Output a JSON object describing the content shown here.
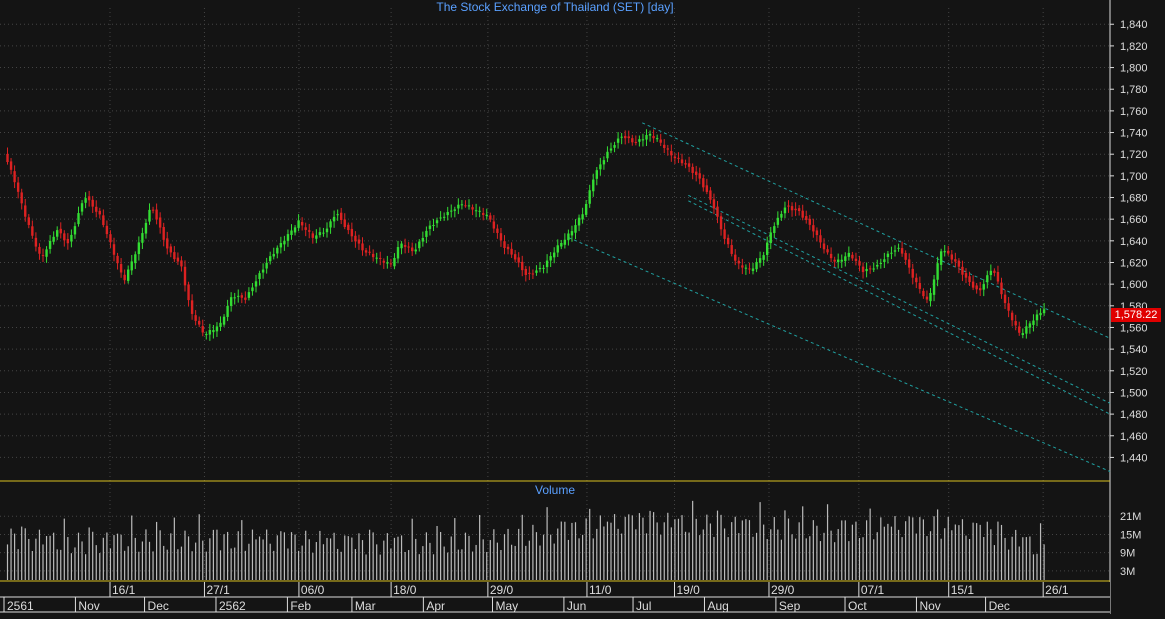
{
  "chart_title": "The Stock Exchange of Thailand (SET) [day]",
  "volume_title": "Volume",
  "last_price_label": "1,578.22",
  "colors": {
    "background": "#141414",
    "grid": "#444444",
    "up": "#33dd33",
    "down": "#dd2222",
    "trend": "#20a0a0",
    "axis_text": "#dddddd",
    "title": "#5aa0ff",
    "last_price_bg": "#e00000",
    "separator": "#d8c020",
    "volume_bar": "#bbbbbb"
  },
  "chart_data": [
    {
      "type": "candlestick",
      "title": "The Stock Exchange of Thailand (SET) [day]",
      "y_ticks": [
        "1,840",
        "1,820",
        "1,800",
        "1,780",
        "1,760",
        "1,740",
        "1,720",
        "1,700",
        "1,680",
        "1,660",
        "1,640",
        "1,620",
        "1,600",
        "1,580",
        "1,560",
        "1,540",
        "1,520",
        "1,500",
        "1,480",
        "1,460",
        "1,440"
      ],
      "ylim": [
        1421,
        1855
      ],
      "last_close": 1578.22,
      "close_series": [
        {
          "date": "2561-10-01",
          "close": 1720
        },
        {
          "date": "2561-10-05",
          "close": 1700
        },
        {
          "date": "2561-10-11",
          "close": 1660
        },
        {
          "date": "2561-10-17",
          "close": 1625
        },
        {
          "date": "2561-10-24",
          "close": 1650
        },
        {
          "date": "2561-10-29",
          "close": 1635
        },
        {
          "date": "2561-11-05",
          "close": 1680
        },
        {
          "date": "2561-11-12",
          "close": 1662
        },
        {
          "date": "2561-11-16",
          "close": 1640
        },
        {
          "date": "2561-11-22",
          "close": 1605
        },
        {
          "date": "2561-11-28",
          "close": 1635
        },
        {
          "date": "2561-12-04",
          "close": 1672
        },
        {
          "date": "2561-12-11",
          "close": 1630
        },
        {
          "date": "2561-12-17",
          "close": 1615
        },
        {
          "date": "2561-12-21",
          "close": 1575
        },
        {
          "date": "2561-12-27",
          "close": 1555
        },
        {
          "date": "2562-01-03",
          "close": 1565
        },
        {
          "date": "2562-01-08",
          "close": 1590
        },
        {
          "date": "2562-01-14",
          "close": 1585
        },
        {
          "date": "2562-01-18",
          "close": 1600
        },
        {
          "date": "2562-01-24",
          "close": 1622
        },
        {
          "date": "2562-01-30",
          "close": 1640
        },
        {
          "date": "2562-02-06",
          "close": 1660
        },
        {
          "date": "2562-02-12",
          "close": 1645
        },
        {
          "date": "2562-02-18",
          "close": 1650
        },
        {
          "date": "2562-02-22",
          "close": 1665
        },
        {
          "date": "2562-02-28",
          "close": 1645
        },
        {
          "date": "2562-03-06",
          "close": 1630
        },
        {
          "date": "2562-03-12",
          "close": 1625
        },
        {
          "date": "2562-03-18",
          "close": 1620
        },
        {
          "date": "2562-03-22",
          "close": 1640
        },
        {
          "date": "2562-03-28",
          "close": 1630
        },
        {
          "date": "2562-04-03",
          "close": 1650
        },
        {
          "date": "2562-04-09",
          "close": 1660
        },
        {
          "date": "2562-04-18",
          "close": 1675
        },
        {
          "date": "2562-04-24",
          "close": 1670
        },
        {
          "date": "2562-04-29",
          "close": 1665
        },
        {
          "date": "2562-05-06",
          "close": 1635
        },
        {
          "date": "2562-05-10",
          "close": 1625
        },
        {
          "date": "2562-05-16",
          "close": 1605
        },
        {
          "date": "2562-05-23",
          "close": 1615
        },
        {
          "date": "2562-05-29",
          "close": 1635
        },
        {
          "date": "2562-06-04",
          "close": 1650
        },
        {
          "date": "2562-06-10",
          "close": 1670
        },
        {
          "date": "2562-06-14",
          "close": 1700
        },
        {
          "date": "2562-06-20",
          "close": 1720
        },
        {
          "date": "2562-06-26",
          "close": 1735
        },
        {
          "date": "2562-07-02",
          "close": 1730
        },
        {
          "date": "2562-07-08",
          "close": 1740
        },
        {
          "date": "2562-07-12",
          "close": 1735
        },
        {
          "date": "2562-07-18",
          "close": 1720
        },
        {
          "date": "2562-07-24",
          "close": 1710
        },
        {
          "date": "2562-07-30",
          "close": 1695
        },
        {
          "date": "2562-08-05",
          "close": 1670
        },
        {
          "date": "2562-08-09",
          "close": 1645
        },
        {
          "date": "2562-08-15",
          "close": 1620
        },
        {
          "date": "2562-08-21",
          "close": 1615
        },
        {
          "date": "2562-08-27",
          "close": 1630
        },
        {
          "date": "2562-08-30",
          "close": 1650
        },
        {
          "date": "2562-09-05",
          "close": 1670
        },
        {
          "date": "2562-09-11",
          "close": 1665
        },
        {
          "date": "2562-09-17",
          "close": 1650
        },
        {
          "date": "2562-09-23",
          "close": 1630
        },
        {
          "date": "2562-09-27",
          "close": 1622
        },
        {
          "date": "2562-10-03",
          "close": 1630
        },
        {
          "date": "2562-10-09",
          "close": 1612
        },
        {
          "date": "2562-10-15",
          "close": 1615
        },
        {
          "date": "2562-10-21",
          "close": 1628
        },
        {
          "date": "2562-10-25",
          "close": 1632
        },
        {
          "date": "2562-10-31",
          "close": 1605
        },
        {
          "date": "2562-11-06",
          "close": 1585
        },
        {
          "date": "2562-11-12",
          "close": 1635
        },
        {
          "date": "2562-11-18",
          "close": 1620
        },
        {
          "date": "2562-11-22",
          "close": 1605
        },
        {
          "date": "2562-11-28",
          "close": 1590
        },
        {
          "date": "2562-12-04",
          "close": 1615
        },
        {
          "date": "2562-12-10",
          "close": 1580
        },
        {
          "date": "2562-12-16",
          "close": 1555
        },
        {
          "date": "2562-12-20",
          "close": 1565
        },
        {
          "date": "2562-12-24",
          "close": 1573
        },
        {
          "date": "2562-12-27",
          "close": 1578.22
        }
      ],
      "trend_channel": [
        {
          "start": {
            "date": "2562-07-05",
            "value": 1749
          },
          "end": {
            "date": "2563-01-24",
            "value": 1550
          }
        },
        {
          "start": {
            "date": "2562-07-25",
            "value": 1682
          },
          "end": {
            "date": "2563-01-24",
            "value": 1490
          }
        },
        {
          "start": {
            "date": "2562-07-25",
            "value": 1677
          },
          "end": {
            "date": "2563-01-24",
            "value": 1480
          }
        },
        {
          "start": {
            "date": "2562-06-03",
            "value": 1643
          },
          "end": {
            "date": "2563-01-24",
            "value": 1427
          }
        }
      ]
    },
    {
      "type": "bar",
      "title": "Volume",
      "y_ticks": [
        "21M",
        "15M",
        "9M",
        "3M"
      ],
      "ylim": [
        0,
        27
      ],
      "volume_series": [
        {
          "date": "2561-10-01",
          "value": 14
        },
        {
          "date": "2561-11-01",
          "value": 12
        },
        {
          "date": "2561-12-01",
          "value": 13
        },
        {
          "date": "2562-01-01",
          "value": 13
        },
        {
          "date": "2562-02-01",
          "value": 13
        },
        {
          "date": "2562-03-01",
          "value": 12
        },
        {
          "date": "2562-04-01",
          "value": 12
        },
        {
          "date": "2562-05-01",
          "value": 13
        },
        {
          "date": "2562-06-01",
          "value": 16
        },
        {
          "date": "2562-07-01",
          "value": 19
        },
        {
          "date": "2562-08-01",
          "value": 18
        },
        {
          "date": "2562-09-01",
          "value": 17
        },
        {
          "date": "2562-10-01",
          "value": 16
        },
        {
          "date": "2562-11-01",
          "value": 18
        },
        {
          "date": "2562-12-01",
          "value": 16
        },
        {
          "date": "2562-12-27",
          "value": 10
        }
      ]
    }
  ],
  "x_axis": {
    "top_labels": [
      {
        "label": "16/1",
        "date": "2561-11-16"
      },
      {
        "label": "27/1",
        "date": "2561-12-27"
      },
      {
        "label": "06/0",
        "date": "2562-02-06"
      },
      {
        "label": "18/0",
        "date": "2562-03-18"
      },
      {
        "label": "29/0",
        "date": "2562-04-29"
      },
      {
        "label": "11/0",
        "date": "2562-06-11"
      },
      {
        "label": "19/0",
        "date": "2562-07-19"
      },
      {
        "label": "29/0",
        "date": "2562-08-29"
      },
      {
        "label": "07/1",
        "date": "2562-10-07"
      },
      {
        "label": "15/1",
        "date": "2562-11-15"
      },
      {
        "label": "26/1",
        "date": "2562-12-26"
      }
    ],
    "bottom_labels": [
      {
        "label": "2561",
        "date": "2561-10-01"
      },
      {
        "label": "Nov",
        "date": "2561-11-01"
      },
      {
        "label": "Dec",
        "date": "2561-12-01"
      },
      {
        "label": "2562",
        "date": "2562-01-01"
      },
      {
        "label": "Feb",
        "date": "2562-02-01"
      },
      {
        "label": "Mar",
        "date": "2562-03-01"
      },
      {
        "label": "Apr",
        "date": "2562-04-01"
      },
      {
        "label": "May",
        "date": "2562-05-01"
      },
      {
        "label": "Jun",
        "date": "2562-06-01"
      },
      {
        "label": "Jul",
        "date": "2562-07-01"
      },
      {
        "label": "Aug",
        "date": "2562-08-01"
      },
      {
        "label": "Sep",
        "date": "2562-09-01"
      },
      {
        "label": "Oct",
        "date": "2562-10-01"
      },
      {
        "label": "Nov",
        "date": "2562-11-01"
      },
      {
        "label": "Dec",
        "date": "2562-12-01"
      }
    ]
  }
}
